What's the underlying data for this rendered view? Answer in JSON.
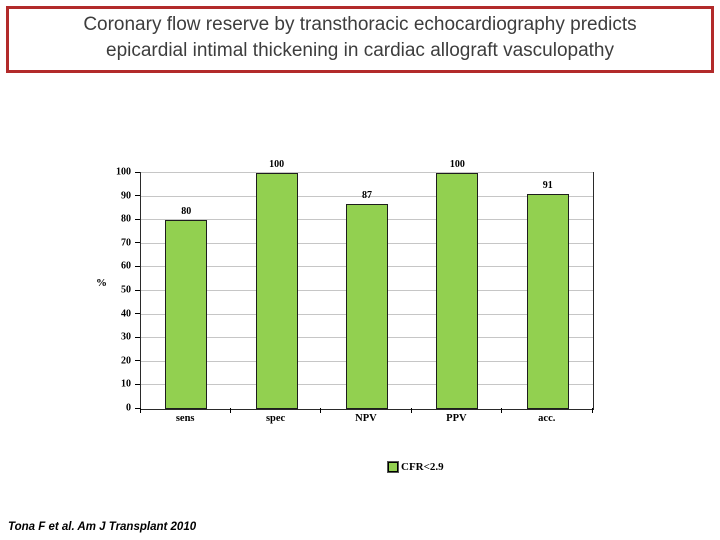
{
  "slide": {
    "title_lines": [
      "Coronary flow reserve by transthoracic echocardiography predicts",
      "epicardial intimal thickening in cardiac allograft vasculopathy"
    ],
    "citation": "Tona F et al. Am J Transplant 2010",
    "accent_color": "#b22a2a"
  },
  "chart_data": {
    "type": "bar",
    "title": "",
    "categories": [
      "sens",
      "spec",
      "NPV",
      "PPV",
      "acc."
    ],
    "values": [
      80,
      100,
      87,
      100,
      91
    ],
    "series_name": "CFR<2.9",
    "xlabel": "",
    "ylabel": "%",
    "ylim": [
      0,
      100
    ],
    "ytick_step": 10,
    "grid": true,
    "legend_position": "bottom",
    "bar_color": "#92d050",
    "bar_border_color": "#1d1d1d"
  }
}
